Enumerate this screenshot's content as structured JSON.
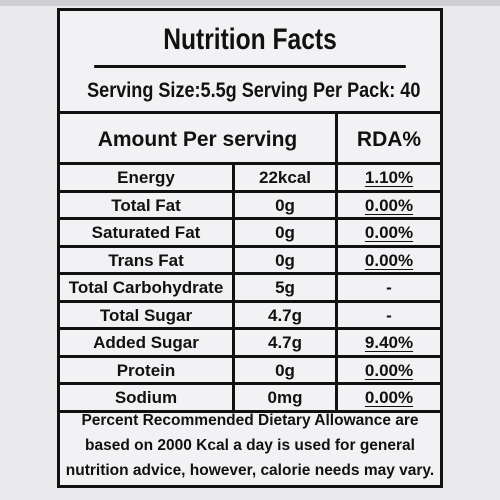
{
  "title": "Nutrition Facts",
  "serving": "Serving Size:5.5g Serving Per Pack: 40",
  "headers": {
    "amount": "Amount Per serving",
    "rda": "RDA%"
  },
  "rows": [
    {
      "name": "Energy",
      "amount": "22kcal",
      "rda": "1.10%"
    },
    {
      "name": "Total Fat",
      "amount": "0g",
      "rda": "0.00%"
    },
    {
      "name": "Saturated Fat",
      "amount": "0g",
      "rda": "0.00%"
    },
    {
      "name": "Trans Fat",
      "amount": "0g",
      "rda": "0.00%"
    },
    {
      "name": "Total Carbohydrate",
      "amount": "5g",
      "rda": "-"
    },
    {
      "name": "Total Sugar",
      "amount": "4.7g",
      "rda": "-"
    },
    {
      "name": "Added Sugar",
      "amount": "4.7g",
      "rda": "9.40%"
    },
    {
      "name": "Protein",
      "amount": "0g",
      "rda": "0.00%"
    },
    {
      "name": "Sodium",
      "amount": "0mg",
      "rda": "0.00%"
    }
  ],
  "footnote": [
    "Percent Recommended Dietary Allowance are",
    "based on 2000 Kcal a day is used for general",
    "nutrition advice, however, calorie needs may vary."
  ]
}
